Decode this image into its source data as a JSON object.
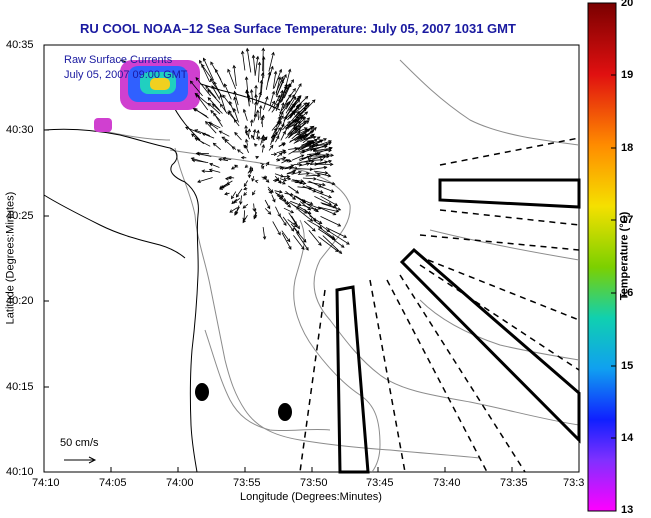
{
  "title": "RU COOL  NOAA–12  Sea Surface Temperature:  July 05, 2007 1031 GMT",
  "overlay_line1": "Raw Surface Currents",
  "overlay_line2": "July 05, 2007 09:00 GMT",
  "scale_label": "50 cm/s",
  "xlabel": "Longitude (Degrees:Minutes)",
  "ylabel": "Latitude (Degrees:Minutes)",
  "colorbar_label": "Temperature (°C)",
  "x_ticks": [
    "74:10",
    "74:05",
    "74:00",
    "73:55",
    "73:50",
    "73:45",
    "73:40",
    "73:35",
    "73:3"
  ],
  "y_ticks": [
    "40:35",
    "40:30",
    "40:25",
    "40:20",
    "40:15",
    "40:10"
  ],
  "colorbar_ticks": [
    "20",
    "19",
    "18",
    "17",
    "16",
    "15",
    "14",
    "13"
  ],
  "colors": {
    "title": "#1a1aa0",
    "overlay": "#1a1aa0",
    "land_line": "#000000",
    "contour": "#8c8c8c"
  }
}
